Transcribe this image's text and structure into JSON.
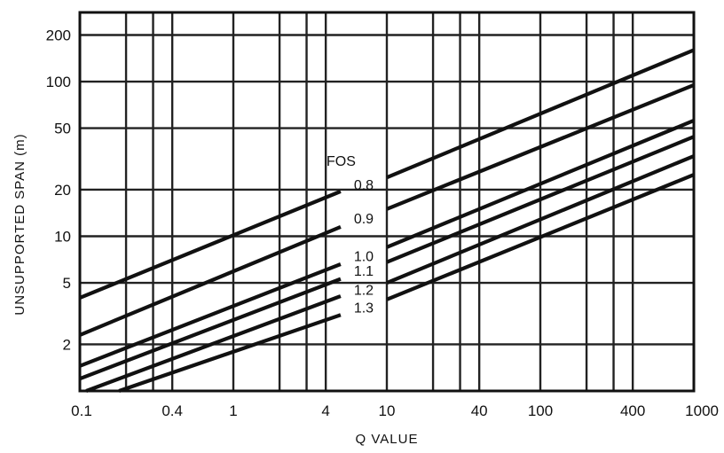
{
  "chart_data": {
    "type": "line",
    "title": "",
    "xlabel": "Q VALUE",
    "ylabel": "UNSUPPORTED SPAN (m)",
    "x_scale": "log",
    "y_scale": "log",
    "xlim": [
      0.1,
      1000
    ],
    "ylim": [
      1,
      280
    ],
    "grid": true,
    "x_ticks": [
      0.1,
      0.4,
      1,
      4,
      10,
      40,
      100,
      400,
      1000
    ],
    "x_tick_labels": [
      "0.1",
      "0.4",
      "1",
      "4",
      "10",
      "40",
      "100",
      "400",
      "1000"
    ],
    "x_gridlines": [
      0.2,
      0.3,
      0.4,
      1,
      2,
      3,
      4,
      10,
      20,
      30,
      40,
      100,
      200,
      300,
      400
    ],
    "y_ticks": [
      2,
      5,
      10,
      20,
      50,
      100,
      200
    ],
    "y_tick_labels": [
      "2",
      "5",
      "10",
      "20",
      "50",
      "100",
      "200"
    ],
    "y_gridlines": [
      2,
      5,
      10,
      20,
      50,
      100,
      200
    ],
    "legend_title": "FOS",
    "series": [
      {
        "name": "0.8",
        "segments": [
          {
            "x": [
              0.1,
              5
            ],
            "y": [
              4.0,
              19.5
            ]
          },
          {
            "x": [
              10,
              1000
            ],
            "y": [
              24,
              160
            ]
          }
        ]
      },
      {
        "name": "0.9",
        "segments": [
          {
            "x": [
              0.1,
              5
            ],
            "y": [
              2.3,
              11.5
            ]
          },
          {
            "x": [
              10,
              1000
            ],
            "y": [
              15,
              95
            ]
          }
        ]
      },
      {
        "name": "1.0",
        "segments": [
          {
            "x": [
              0.1,
              5
            ],
            "y": [
              1.45,
              6.6
            ]
          },
          {
            "x": [
              10,
              1000
            ],
            "y": [
              8.5,
              56
            ]
          }
        ]
      },
      {
        "name": "1.1",
        "segments": [
          {
            "x": [
              0.1,
              5
            ],
            "y": [
              1.2,
              5.3
            ]
          },
          {
            "x": [
              10,
              1000
            ],
            "y": [
              6.8,
              44
            ]
          }
        ]
      },
      {
        "name": "1.2",
        "segments": [
          {
            "x": [
              0.11,
              5
            ],
            "y": [
              1.0,
              4.1
            ]
          },
          {
            "x": [
              10,
              1000
            ],
            "y": [
              5.0,
              33
            ]
          }
        ]
      },
      {
        "name": "1.3",
        "segments": [
          {
            "x": [
              0.18,
              5
            ],
            "y": [
              1.0,
              3.1
            ]
          },
          {
            "x": [
              10,
              1000
            ],
            "y": [
              3.9,
              25
            ]
          }
        ]
      }
    ]
  }
}
